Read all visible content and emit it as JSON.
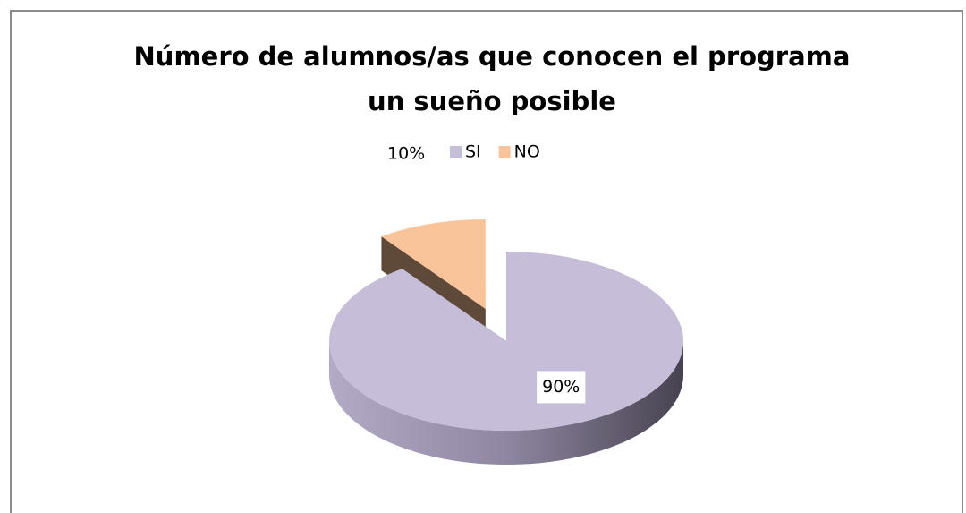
{
  "chart_data": {
    "type": "pie",
    "title": "Número de alumnos/as que conocen el programa un sueño posible",
    "categories": [
      "SI",
      "NO"
    ],
    "values": [
      90,
      10
    ],
    "value_labels": [
      "90%",
      "10%"
    ],
    "colors": [
      "#c6bdd9",
      "#f9c499"
    ],
    "exploded": [
      false,
      true
    ],
    "legend": "top"
  }
}
